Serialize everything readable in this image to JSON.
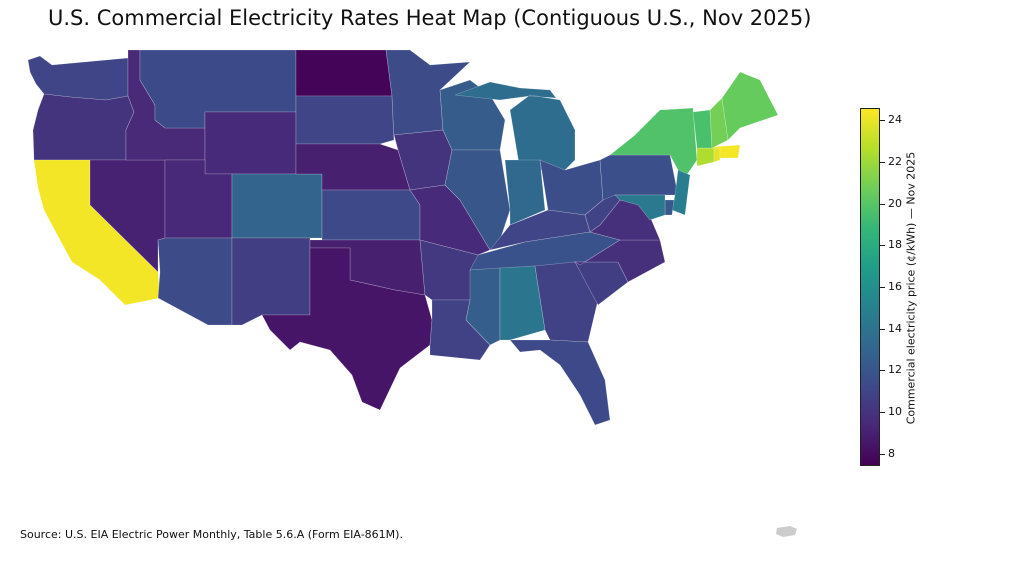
{
  "title": "U.S. Commercial Electricity Rates Heat Map (Contiguous U.S., Nov 2025)",
  "source": "Source: U.S. EIA Electric Power Monthly, Table 5.6.A (Form EIA-861M).",
  "colorbar": {
    "label": "Commercial electricity price (¢/kWh) — Nov 2025",
    "min": 7.4,
    "max": 24.6,
    "ticks": [
      "8",
      "10",
      "12",
      "14",
      "16",
      "18",
      "20",
      "22",
      "24"
    ],
    "colormap": "viridis"
  },
  "chart_data": {
    "type": "heatmap",
    "map": "choropleth",
    "region": "Contiguous U.S.",
    "period": "Nov 2025",
    "unit": "¢/kWh",
    "values": {
      "WA": 11.0,
      "OR": 10.0,
      "CA": 24.3,
      "NV": 9.0,
      "ID": 9.4,
      "MT": 11.3,
      "WY": 9.5,
      "UT": 9.3,
      "AZ": 11.4,
      "CO": 12.9,
      "NM": 10.6,
      "ND": 7.6,
      "SD": 11.0,
      "NE": 8.9,
      "KS": 11.2,
      "OK": 8.9,
      "TX": 8.4,
      "MN": 11.4,
      "IA": 10.0,
      "MO": 9.5,
      "AR": 10.3,
      "LA": 10.8,
      "WI": 12.4,
      "IL": 12.0,
      "MI": 13.5,
      "IN": 13.2,
      "OH": 11.5,
      "KY": 11.0,
      "TN": 11.8,
      "MS": 12.5,
      "AL": 14.1,
      "GA": 10.8,
      "FL": 11.2,
      "SC": 10.6,
      "NC": 9.7,
      "VA": 9.7,
      "WV": 10.9,
      "PA": 11.6,
      "NY": 19.8,
      "NJ": 14.7,
      "DE": 12.2,
      "MD": 14.4,
      "CT": 22.5,
      "RI": 23.9,
      "MA": 24.4,
      "VT": 19.6,
      "NH": 20.9,
      "ME": 20.5
    }
  }
}
